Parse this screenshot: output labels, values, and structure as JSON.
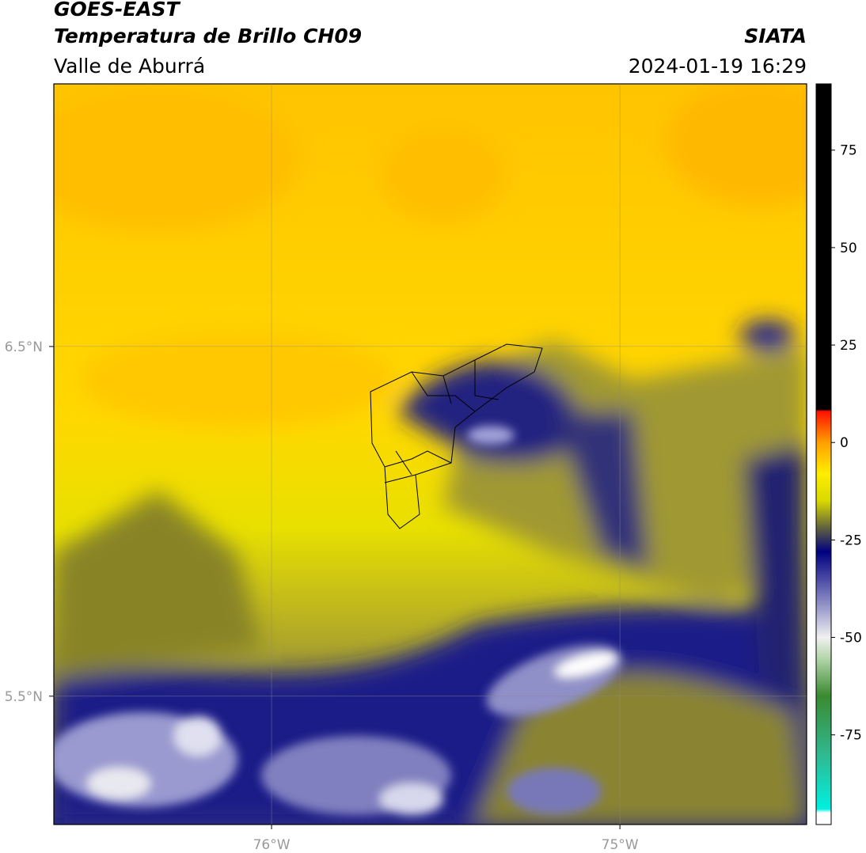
{
  "header": {
    "title": "GOES-EAST",
    "subtitle": "Temperatura de Brillo CH09",
    "region": "Valle de Aburrá",
    "source": "SIATA",
    "timestamp": "2024-01-19 16:29"
  },
  "map": {
    "xlim": [
      -76.625,
      -74.464
    ],
    "ylim": [
      5.133,
      7.251
    ],
    "xticks": [
      {
        "value": -76,
        "label": "76°W"
      },
      {
        "value": -75,
        "label": "75°W"
      }
    ],
    "yticks": [
      {
        "value": 6.5,
        "label": "6.5°N"
      },
      {
        "value": 5.5,
        "label": "5.5°N"
      }
    ],
    "grid": true
  },
  "colorbar": {
    "lim": [
      -98,
      92
    ],
    "ticks": [
      75,
      50,
      25,
      0,
      -25,
      -50,
      -75
    ],
    "stops": [
      {
        "value": -98,
        "color": "#ffffff"
      },
      {
        "value": -95,
        "color": "#ffffff"
      },
      {
        "value": -94,
        "color": "#00f0e0"
      },
      {
        "value": -80,
        "color": "#30b890"
      },
      {
        "value": -65,
        "color": "#3a8a30"
      },
      {
        "value": -55,
        "color": "#b8d8b0"
      },
      {
        "value": -50,
        "color": "#f0f0f0"
      },
      {
        "value": -40,
        "color": "#8080c0"
      },
      {
        "value": -28,
        "color": "#000080"
      },
      {
        "value": -22,
        "color": "#606040"
      },
      {
        "value": -15,
        "color": "#d8d800"
      },
      {
        "value": -8,
        "color": "#ffee00"
      },
      {
        "value": 0,
        "color": "#ffa000"
      },
      {
        "value": 8,
        "color": "#ff1000"
      },
      {
        "value": 8.5,
        "color": "#000000"
      },
      {
        "value": 92,
        "color": "#000000"
      }
    ]
  }
}
